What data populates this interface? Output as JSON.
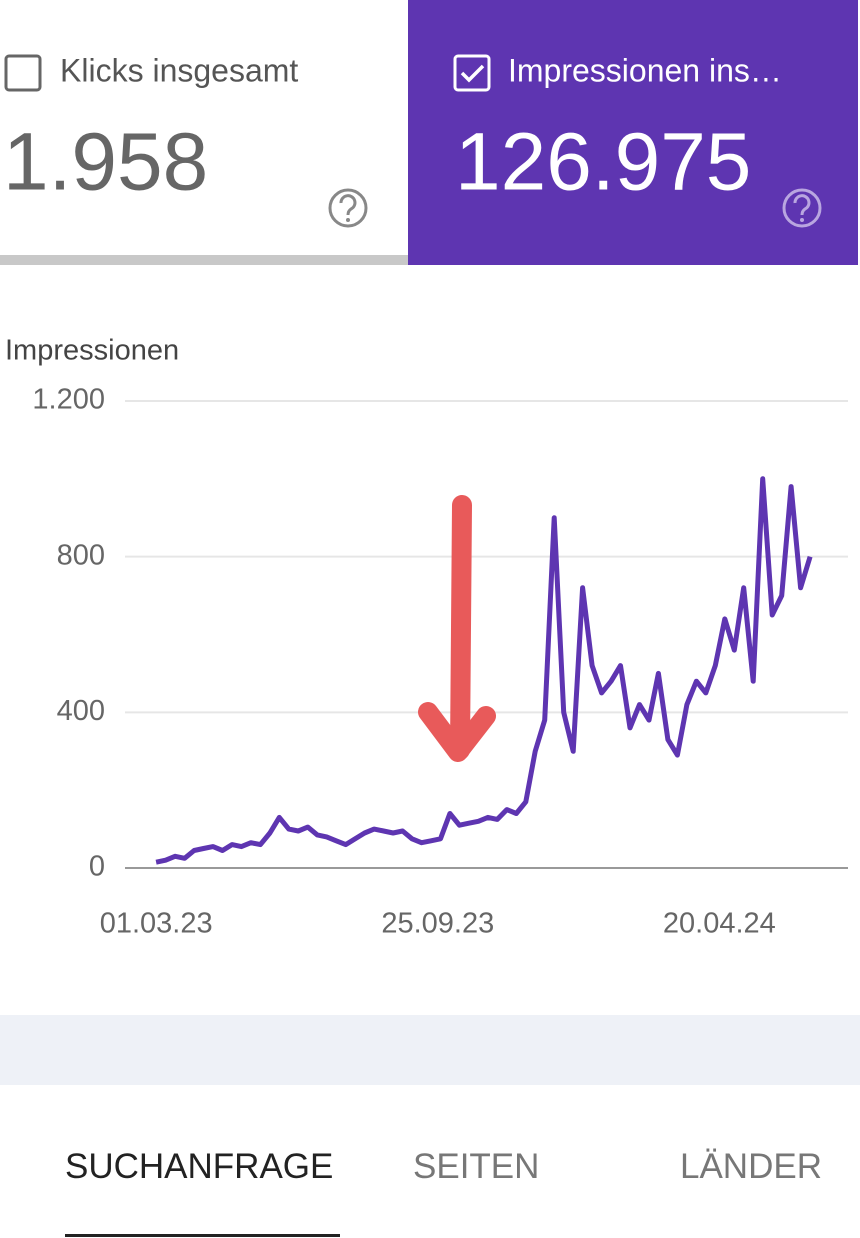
{
  "cards": [
    {
      "label": "Klicks insgesamt",
      "value": "1.958"
    },
    {
      "label": "Impressionen ins…",
      "value": "126.975"
    }
  ],
  "chart_data": {
    "type": "line",
    "y_label": "Impressionen",
    "color": "#5e35b1",
    "grid": true,
    "ylim": [
      0,
      1200
    ],
    "yticks": [
      0,
      400,
      800,
      {
        "value": 1200,
        "label": "1.200"
      }
    ],
    "xlim": [
      "06.02.23",
      "24.07.24"
    ],
    "xticks": [
      "01.03.23",
      "25.09.23",
      "20.04.24"
    ],
    "x": [
      "01.03.23",
      "08.03.23",
      "15.03.23",
      "22.03.23",
      "29.03.23",
      "05.04.23",
      "12.04.23",
      "19.04.23",
      "26.04.23",
      "03.05.23",
      "10.05.23",
      "17.05.23",
      "24.05.23",
      "31.05.23",
      "07.06.23",
      "14.06.23",
      "21.06.23",
      "28.06.23",
      "05.07.23",
      "12.07.23",
      "19.07.23",
      "26.07.23",
      "02.08.23",
      "09.08.23",
      "16.08.23",
      "23.08.23",
      "30.08.23",
      "06.09.23",
      "13.09.23",
      "20.09.23",
      "27.09.23",
      "04.10.23",
      "11.10.23",
      "18.10.23",
      "25.10.23",
      "01.11.23",
      "08.11.23",
      "15.11.23",
      "22.11.23",
      "29.11.23",
      "06.12.23",
      "13.12.23",
      "20.12.23",
      "27.12.23",
      "03.01.24",
      "10.01.24",
      "17.01.24",
      "24.01.24",
      "31.01.24",
      "07.02.24",
      "14.02.24",
      "21.02.24",
      "28.02.24",
      "06.03.24",
      "13.03.24",
      "20.03.24",
      "27.03.24",
      "03.04.24",
      "10.04.24",
      "17.04.24",
      "24.04.24",
      "01.05.24",
      "08.05.24",
      "15.05.24",
      "22.05.24",
      "29.05.24",
      "05.06.24",
      "12.06.24",
      "19.06.24",
      "26.06.24"
    ],
    "series": [
      {
        "name": "Impressionen",
        "color": "#5e35b1",
        "values": [
          15,
          20,
          30,
          25,
          45,
          50,
          55,
          45,
          60,
          55,
          65,
          60,
          90,
          130,
          100,
          95,
          105,
          85,
          80,
          70,
          60,
          75,
          90,
          100,
          95,
          90,
          95,
          75,
          65,
          70,
          75,
          140,
          110,
          115,
          120,
          130,
          125,
          150,
          140,
          170,
          300,
          380,
          900,
          400,
          300,
          720,
          520,
          450,
          480,
          520,
          360,
          420,
          380,
          500,
          330,
          290,
          420,
          480,
          450,
          520,
          640,
          560,
          720,
          480,
          1000,
          650,
          700,
          980,
          720,
          800
        ]
      }
    ]
  },
  "tabs": [
    "SUCHANFRAGE",
    "SEITEN",
    "LÄNDER"
  ]
}
